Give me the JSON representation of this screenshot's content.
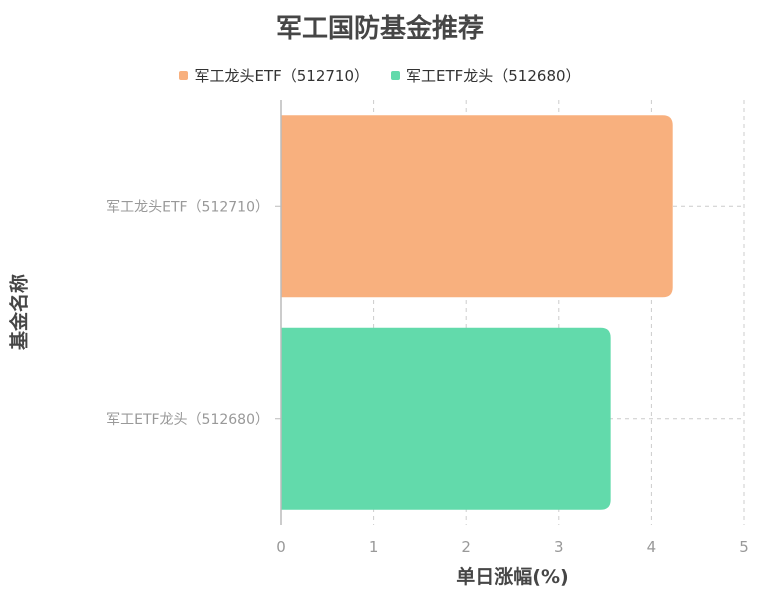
{
  "chart_data": {
    "type": "bar",
    "orientation": "horizontal",
    "title": "军工国防基金推荐",
    "xlabel": "单日涨幅(%)",
    "ylabel": "基金名称",
    "categories": [
      "军工龙头ETF（512710）",
      "军工ETF龙头（512680）"
    ],
    "series": [
      {
        "name": "军工龙头ETF（512710）",
        "color": "#F8B07E",
        "values": [
          4.23,
          null
        ]
      },
      {
        "name": "军工ETF龙头（512680）",
        "color": "#62DAAB",
        "values": [
          null,
          3.56
        ]
      }
    ],
    "xlim": [
      0,
      5
    ],
    "xticks": [
      "0",
      "1",
      "2",
      "3",
      "4",
      "5"
    ],
    "grid": true,
    "legend": "top"
  }
}
